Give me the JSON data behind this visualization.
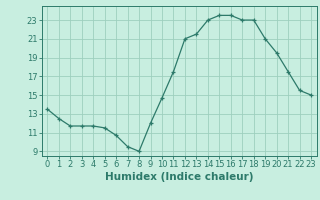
{
  "x": [
    0,
    1,
    2,
    3,
    4,
    5,
    6,
    7,
    8,
    9,
    10,
    11,
    12,
    13,
    14,
    15,
    16,
    17,
    18,
    19,
    20,
    21,
    22,
    23
  ],
  "y": [
    13.5,
    12.5,
    11.7,
    11.7,
    11.7,
    11.5,
    10.7,
    9.5,
    9.0,
    12.0,
    14.7,
    17.5,
    21.0,
    21.5,
    23.0,
    23.5,
    23.5,
    23.0,
    23.0,
    21.0,
    19.5,
    17.5,
    15.5,
    15.0
  ],
  "xlabel": "Humidex (Indice chaleur)",
  "ylim": [
    8.5,
    24.5
  ],
  "xlim": [
    -0.5,
    23.5
  ],
  "yticks": [
    9,
    11,
    13,
    15,
    17,
    19,
    21,
    23
  ],
  "xticks": [
    0,
    1,
    2,
    3,
    4,
    5,
    6,
    7,
    8,
    9,
    10,
    11,
    12,
    13,
    14,
    15,
    16,
    17,
    18,
    19,
    20,
    21,
    22,
    23
  ],
  "line_color": "#2d7a6a",
  "marker_color": "#2d7a6a",
  "bg_color": "#c8eee0",
  "grid_color": "#9ecfbe",
  "axis_color": "#2d7a6a",
  "xlabel_fontsize": 7.5,
  "tick_fontsize": 6.0
}
